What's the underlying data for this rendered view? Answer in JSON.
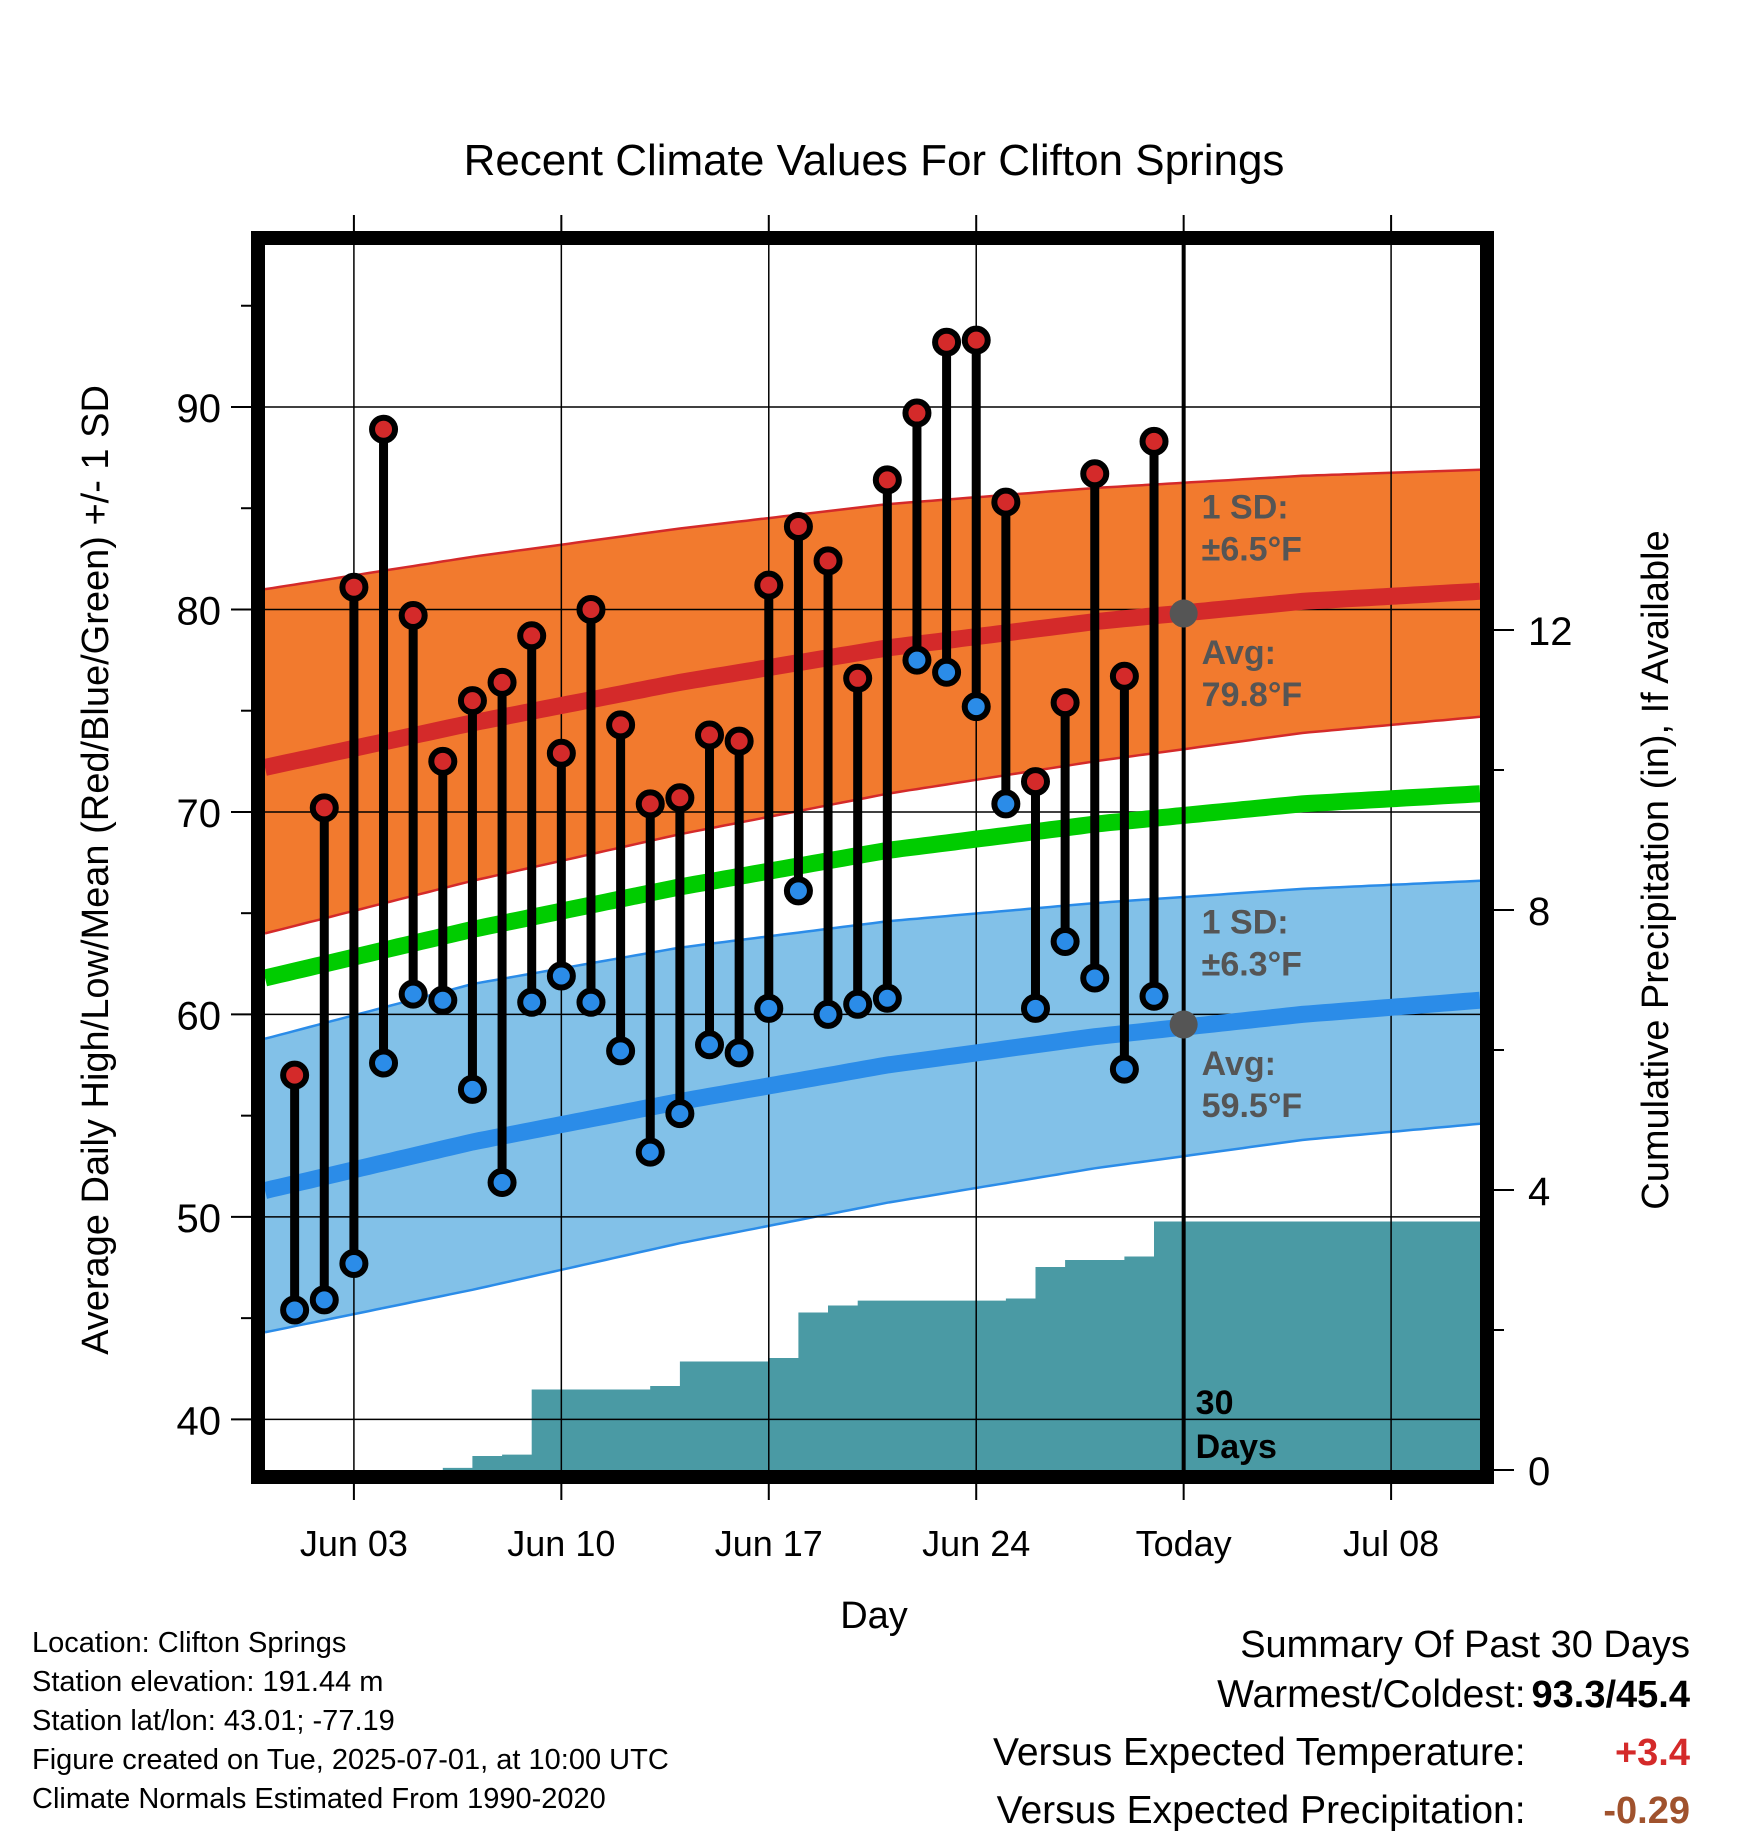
{
  "chart_data": {
    "type": "line",
    "title": "Recent Climate Values For Clifton Springs",
    "xlabel": "Day",
    "ylabel": "Average Daily High/Low/Mean (Red/Blue/Green) +/- 1 SD",
    "y2label": "Cumulative Precipitation (in), If Available",
    "x_range": [
      "2025-05-31",
      "2025-07-11"
    ],
    "ylim": [
      37.5,
      98
    ],
    "y2lim": [
      0,
      17.5
    ],
    "x_ticks": [
      {
        "date": "2025-06-03",
        "label": "Jun 03"
      },
      {
        "date": "2025-06-10",
        "label": "Jun 10"
      },
      {
        "date": "2025-06-17",
        "label": "Jun 17"
      },
      {
        "date": "2025-06-24",
        "label": "Jun 24"
      },
      {
        "date": "2025-07-01",
        "label": "Today"
      },
      {
        "date": "2025-07-08",
        "label": "Jul 08"
      }
    ],
    "y_ticks": [
      40,
      50,
      60,
      70,
      80,
      90
    ],
    "y_minor_ticks": [
      45,
      55,
      65,
      75,
      85,
      95
    ],
    "y2_ticks": [
      0,
      4,
      8,
      12
    ],
    "grid": true,
    "dates": [
      "2025-06-01",
      "2025-06-02",
      "2025-06-03",
      "2025-06-04",
      "2025-06-05",
      "2025-06-06",
      "2025-06-07",
      "2025-06-08",
      "2025-06-09",
      "2025-06-10",
      "2025-06-11",
      "2025-06-12",
      "2025-06-13",
      "2025-06-14",
      "2025-06-15",
      "2025-06-16",
      "2025-06-17",
      "2025-06-18",
      "2025-06-19",
      "2025-06-20",
      "2025-06-21",
      "2025-06-22",
      "2025-06-23",
      "2025-06-24",
      "2025-06-25",
      "2025-06-26",
      "2025-06-27",
      "2025-06-28",
      "2025-06-29",
      "2025-06-30"
    ],
    "series": [
      {
        "name": "High",
        "color": "#d42a2a",
        "values": [
          57.0,
          70.2,
          81.1,
          88.9,
          79.7,
          72.5,
          75.5,
          76.4,
          78.7,
          72.9,
          80.0,
          74.3,
          70.4,
          70.7,
          73.8,
          73.5,
          81.2,
          84.1,
          82.4,
          76.6,
          86.4,
          89.7,
          93.2,
          93.3,
          85.3,
          71.5,
          75.4,
          86.7,
          76.7,
          88.3
        ]
      },
      {
        "name": "Low",
        "color": "#2b8ce8",
        "values": [
          45.4,
          45.9,
          47.7,
          57.6,
          61.0,
          60.7,
          56.3,
          51.7,
          60.6,
          61.9,
          60.6,
          58.2,
          53.2,
          55.1,
          58.5,
          58.1,
          60.3,
          66.1,
          60.0,
          60.5,
          60.8,
          77.5,
          76.9,
          75.2,
          70.4,
          60.3,
          63.6,
          61.8,
          57.3,
          60.9
        ]
      }
    ],
    "normals": {
      "x": [
        "2025-05-31",
        "2025-06-07",
        "2025-06-14",
        "2025-06-21",
        "2025-06-28",
        "2025-07-05",
        "2025-07-11"
      ],
      "high_mean": [
        72.2,
        74.4,
        76.4,
        78.1,
        79.4,
        80.4,
        80.9
      ],
      "high_upper": [
        81.0,
        82.6,
        84.0,
        85.2,
        86.0,
        86.6,
        86.9
      ],
      "high_lower": [
        64.0,
        66.6,
        68.9,
        70.9,
        72.5,
        73.9,
        74.7
      ],
      "mean": [
        61.8,
        64.2,
        66.3,
        68.1,
        69.4,
        70.4,
        70.9
      ],
      "low_mean": [
        51.3,
        53.7,
        55.7,
        57.5,
        58.9,
        60.0,
        60.7
      ],
      "low_upper": [
        58.8,
        61.5,
        63.3,
        64.6,
        65.5,
        66.2,
        66.6
      ],
      "low_lower": [
        44.3,
        46.4,
        48.7,
        50.7,
        52.4,
        53.8,
        54.6
      ],
      "colors": {
        "high_band": "#f27a2e",
        "high_line": "#d42a2a",
        "mean_line": "#00cc00",
        "low_band": "#82c1e8",
        "low_line": "#2b8ce8"
      }
    },
    "precipitation": {
      "color": "#4a9aa4",
      "steps": [
        [
          "2025-06-01",
          0
        ],
        [
          "2025-06-06",
          0.03
        ],
        [
          "2025-06-07",
          0.2
        ],
        [
          "2025-06-08",
          0.22
        ],
        [
          "2025-06-09",
          1.15
        ],
        [
          "2025-06-13",
          1.2
        ],
        [
          "2025-06-14",
          1.55
        ],
        [
          "2025-06-17",
          1.6
        ],
        [
          "2025-06-18",
          2.25
        ],
        [
          "2025-06-19",
          2.35
        ],
        [
          "2025-06-20",
          2.42
        ],
        [
          "2025-06-25",
          2.45
        ],
        [
          "2025-06-26",
          2.9
        ],
        [
          "2025-06-27",
          3.0
        ],
        [
          "2025-06-29",
          3.05
        ],
        [
          "2025-06-30",
          3.55
        ],
        [
          "2025-07-11",
          3.55
        ]
      ]
    },
    "annotations": {
      "high_sd": [
        "1 SD:",
        "±6.5°F"
      ],
      "high_avg": [
        "Avg:",
        "79.8°F"
      ],
      "low_sd": [
        "1 SD:",
        "±6.3°F"
      ],
      "low_avg": [
        "Avg:",
        "59.5°F"
      ],
      "today_high_avg": 79.8,
      "today_low_avg": 59.5,
      "window": [
        "30",
        "Days"
      ]
    }
  },
  "footer": {
    "location": "Location: Clifton Springs",
    "elevation": "Station elevation: 191.44 m",
    "latlon": "Station lat/lon: 43.01; -77.19",
    "created": "Figure created on Tue, 2025-07-01, at 10:00 UTC",
    "normals": "Climate Normals Estimated From 1990-2020"
  },
  "summary": {
    "title": "Summary Of Past 30 Days",
    "warm_cold_label": "Warmest/Coldest:",
    "warm_cold_value": "93.3/45.4",
    "temp_label": "Versus Expected Temperature:",
    "temp_value": "+3.4",
    "temp_color": "#d42a2a",
    "precip_label": "Versus Expected Precipitation:",
    "precip_value": "-0.29",
    "precip_color": "#a0522d"
  }
}
